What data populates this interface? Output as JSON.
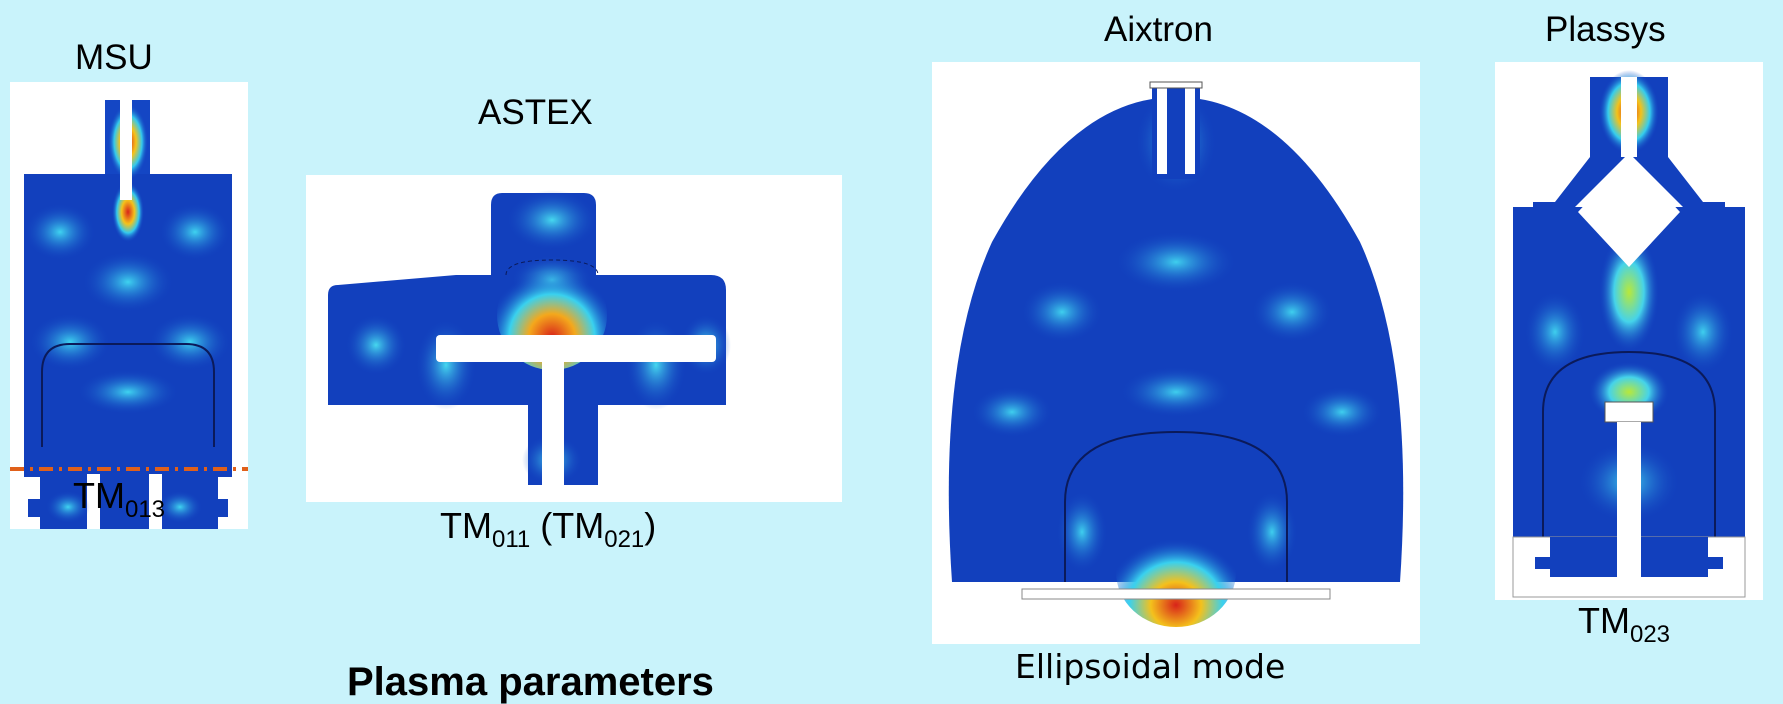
{
  "reactors": [
    {
      "name": "MSU",
      "mode_base": "TM",
      "mode_sub": "013"
    },
    {
      "name": "ASTEX",
      "mode_base": "TM",
      "mode_sub": "011",
      "mode_alt_base": "TM",
      "mode_alt_sub": "021"
    },
    {
      "name": "Aixtron",
      "mode_text": "Ellipsoidal mode"
    },
    {
      "name": "Plassys",
      "mode_base": "TM",
      "mode_sub": "023"
    }
  ],
  "bottom_heading": "Plasma parameters",
  "colors": {
    "background": "#c9f3fb",
    "field_low": "#0f2fa8",
    "field_mid": "#18a9e6",
    "field_high": "#e8301a"
  }
}
